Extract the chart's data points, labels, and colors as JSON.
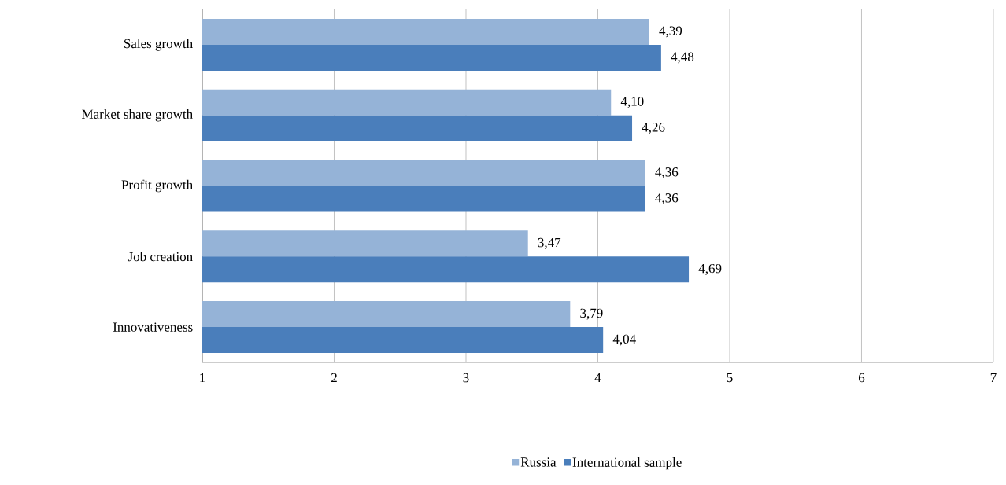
{
  "chart_data": {
    "type": "bar",
    "orientation": "horizontal",
    "categories": [
      "Sales growth",
      "Market share growth",
      "Profit growth",
      "Job creation",
      "Innovativeness"
    ],
    "series": [
      {
        "name": "Russia",
        "color": "#95b3d7",
        "values": [
          4.39,
          4.1,
          4.36,
          3.47,
          3.79
        ],
        "value_labels": [
          "4,39",
          "4,10",
          "4,36",
          "3,47",
          "3,79"
        ]
      },
      {
        "name": "International sample",
        "color": "#4a7ebb",
        "values": [
          4.48,
          4.26,
          4.36,
          4.69,
          4.04
        ],
        "value_labels": [
          "4,48",
          "4,26",
          "4,36",
          "4,69",
          "4,04"
        ]
      }
    ],
    "xlim": [
      1,
      7
    ],
    "xticks": [
      1,
      2,
      3,
      4,
      5,
      6,
      7
    ],
    "grid": "x",
    "legend": "bottom"
  }
}
